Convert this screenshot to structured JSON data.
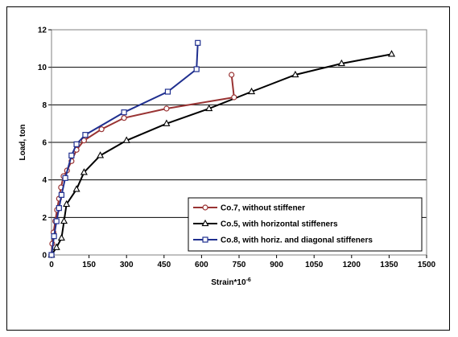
{
  "chart_data": {
    "type": "line",
    "xlabel": "Strain*10",
    "xlabel_superscript": "-6",
    "ylabel": "Load, ton",
    "xlim": [
      0,
      1500
    ],
    "ylim": [
      0,
      12
    ],
    "xticks": [
      0,
      150,
      300,
      450,
      600,
      750,
      900,
      1050,
      1200,
      1350,
      1500
    ],
    "yticks": [
      0,
      2,
      4,
      6,
      8,
      10,
      12
    ],
    "grid": "horizontal",
    "legend_position": "bottom-right",
    "series": [
      {
        "name": "Co.7, without stiffener",
        "color": "#993333",
        "marker": "circle",
        "x": [
          0,
          3,
          8,
          15,
          22,
          30,
          38,
          48,
          62,
          80,
          100,
          130,
          200,
          290,
          460,
          730,
          720
        ],
        "y": [
          0,
          0.6,
          1.2,
          1.8,
          2.4,
          3.0,
          3.6,
          4.2,
          4.5,
          5.0,
          5.6,
          6.1,
          6.7,
          7.3,
          7.8,
          8.4,
          9.6
        ]
      },
      {
        "name": "Co.5, with horizontal stiffeners",
        "color": "#000000",
        "marker": "triangle",
        "x": [
          0,
          20,
          40,
          50,
          60,
          100,
          130,
          195,
          300,
          460,
          630,
          800,
          975,
          1160,
          1360
        ],
        "y": [
          0,
          0.4,
          0.9,
          1.8,
          2.7,
          3.5,
          4.4,
          5.3,
          6.1,
          7.0,
          7.8,
          8.7,
          9.6,
          10.2,
          10.7
        ]
      },
      {
        "name": "Co.8, with horiz. and diagonal stiffeners",
        "color": "#1f2f8f",
        "marker": "square",
        "x": [
          0,
          10,
          20,
          30,
          40,
          55,
          80,
          100,
          135,
          290,
          465,
          580,
          585
        ],
        "y": [
          0,
          1.0,
          1.8,
          2.5,
          3.2,
          4.1,
          5.3,
          5.9,
          6.4,
          7.6,
          8.7,
          9.9,
          11.3
        ]
      }
    ]
  }
}
